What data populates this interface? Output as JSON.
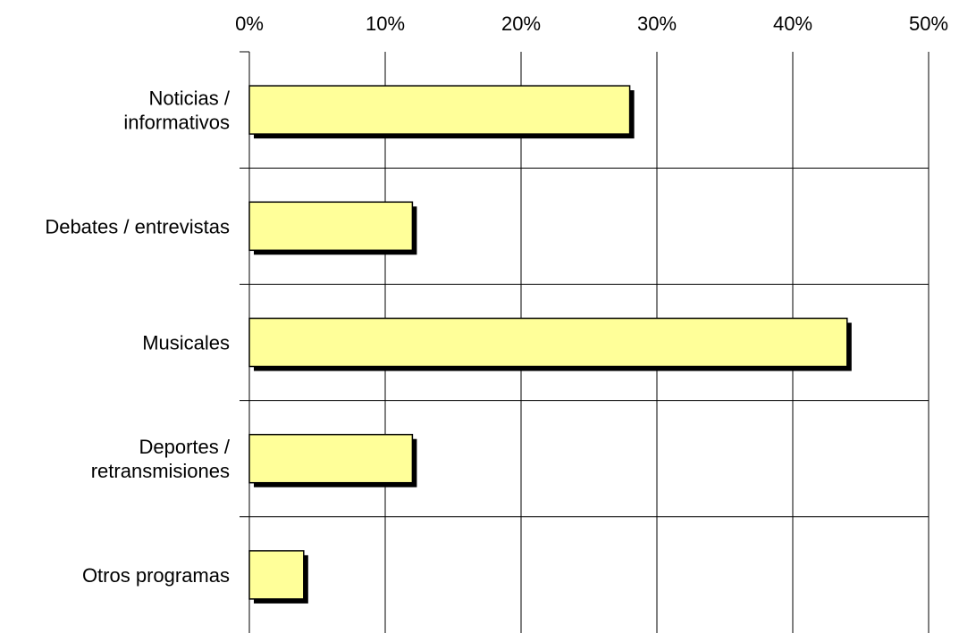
{
  "chart_data": {
    "type": "bar",
    "orientation": "horizontal",
    "categories": [
      [
        "Noticias /",
        "informativos"
      ],
      [
        "Debates / entrevistas"
      ],
      [
        "Musicales"
      ],
      [
        "Deportes /",
        "retransmisiones"
      ],
      [
        "Otros programas"
      ]
    ],
    "values": [
      28,
      12,
      44,
      12,
      4
    ],
    "x_ticks": [
      "0%",
      "10%",
      "20%",
      "30%",
      "40%",
      "50%"
    ],
    "xlim": [
      0,
      50
    ],
    "x_axis_position": "top",
    "grid": true,
    "legend": "none",
    "colors": {
      "bar_fill": "#ffff99",
      "bar_stroke": "#000000",
      "bar_shadow": "#000000",
      "grid": "#000000"
    }
  }
}
